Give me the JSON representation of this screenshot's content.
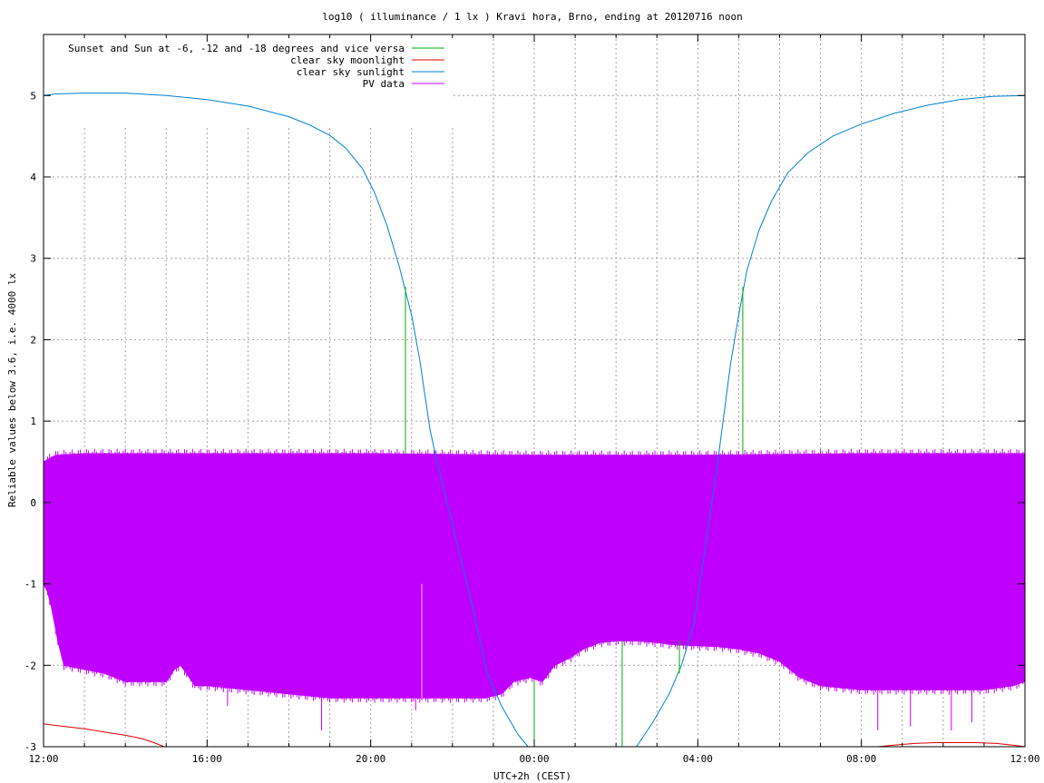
{
  "chart_data": {
    "type": "line",
    "title": "log10 ( illuminance / 1 lx ) Kravi hora, Brno, ending at 20120716 noon",
    "xlabel": "UTC+2h (CEST)",
    "ylabel": "Reliable values below 3.6, i.e. 4000 lx",
    "x_unit": "hours since 12:00",
    "xlim": [
      0,
      24
    ],
    "ylim": [
      -3,
      5.75
    ],
    "xticks": [
      {
        "value": 0,
        "label": "12:00"
      },
      {
        "value": 4,
        "label": "16:00"
      },
      {
        "value": 8,
        "label": "20:00"
      },
      {
        "value": 12,
        "label": "00:00"
      },
      {
        "value": 16,
        "label": "04:00"
      },
      {
        "value": 20,
        "label": "08:00"
      },
      {
        "value": 24,
        "label": "12:00"
      }
    ],
    "yticks": [
      {
        "value": -3,
        "label": "-3"
      },
      {
        "value": -2,
        "label": "-2"
      },
      {
        "value": -1,
        "label": "-1"
      },
      {
        "value": 0,
        "label": "0"
      },
      {
        "value": 1,
        "label": "1"
      },
      {
        "value": 2,
        "label": "2"
      },
      {
        "value": 3,
        "label": "3"
      },
      {
        "value": 4,
        "label": "4"
      },
      {
        "value": 5,
        "label": "5"
      }
    ],
    "grid": true,
    "legend_position": "top-left",
    "series": [
      {
        "name": "Sunset and Sun at -6, -12 and -18 degrees and vice versa",
        "color": "#00b000",
        "kind": "impulses",
        "impulses": [
          {
            "x": 8.85,
            "y0": 0.6,
            "y1": 2.65
          },
          {
            "x": 12.0,
            "y0": -3.0,
            "y1": -2.2
          },
          {
            "x": 14.15,
            "y0": -3.0,
            "y1": -1.7
          },
          {
            "x": 15.55,
            "y0": -2.1,
            "y1": -1.7
          },
          {
            "x": 17.1,
            "y0": 0.6,
            "y1": 2.65
          }
        ]
      },
      {
        "name": "clear sky moonlight",
        "color": "#e00000",
        "kind": "segments",
        "segments": [
          [
            [
              0,
              -2.72
            ],
            [
              0.5,
              -2.75
            ],
            [
              1.0,
              -2.78
            ],
            [
              1.5,
              -2.82
            ],
            [
              2.0,
              -2.86
            ],
            [
              2.4,
              -2.9
            ],
            [
              2.7,
              -2.95
            ],
            [
              2.95,
              -3.0
            ]
          ],
          [
            [
              20.4,
              -3.0
            ],
            [
              20.8,
              -2.98
            ],
            [
              21.3,
              -2.96
            ],
            [
              21.8,
              -2.95
            ],
            [
              22.3,
              -2.95
            ],
            [
              22.8,
              -2.95
            ],
            [
              23.3,
              -2.96
            ],
            [
              23.7,
              -2.98
            ],
            [
              24,
              -3.0
            ]
          ]
        ]
      },
      {
        "name": "clear sky sunlight",
        "color": "#0080d0",
        "kind": "segments",
        "segments": [
          [
            [
              0,
              5.0
            ],
            [
              0.3,
              5.02
            ],
            [
              1.0,
              5.03
            ],
            [
              2.0,
              5.03
            ],
            [
              3.0,
              5.0
            ],
            [
              4.0,
              4.95
            ],
            [
              5.0,
              4.87
            ],
            [
              6.0,
              4.74
            ],
            [
              6.5,
              4.64
            ],
            [
              7.0,
              4.51
            ],
            [
              7.4,
              4.35
            ],
            [
              7.8,
              4.1
            ],
            [
              8.1,
              3.8
            ],
            [
              8.4,
              3.4
            ],
            [
              8.7,
              2.9
            ],
            [
              9.0,
              2.3
            ],
            [
              9.2,
              1.75
            ],
            [
              9.45,
              0.9
            ],
            [
              9.6,
              0.55
            ],
            [
              10.5,
              -1.3
            ],
            [
              10.85,
              -2.1
            ],
            [
              11.2,
              -2.5
            ],
            [
              11.6,
              -2.85
            ],
            [
              11.85,
              -3.0
            ]
          ],
          [
            [
              14.5,
              -3.0
            ],
            [
              14.9,
              -2.7
            ],
            [
              15.3,
              -2.35
            ],
            [
              15.6,
              -2.0
            ],
            [
              15.9,
              -1.5
            ],
            [
              16.2,
              -0.5
            ],
            [
              16.5,
              0.55
            ],
            [
              16.8,
              1.7
            ],
            [
              17.0,
              2.3
            ],
            [
              17.2,
              2.85
            ],
            [
              17.5,
              3.35
            ],
            [
              17.8,
              3.7
            ],
            [
              18.2,
              4.05
            ],
            [
              18.7,
              4.3
            ],
            [
              19.3,
              4.5
            ],
            [
              20.0,
              4.65
            ],
            [
              20.8,
              4.78
            ],
            [
              21.6,
              4.88
            ],
            [
              22.4,
              4.95
            ],
            [
              23.2,
              4.99
            ],
            [
              24,
              5.0
            ]
          ]
        ]
      },
      {
        "name": "PV data",
        "color": "#c000ff",
        "kind": "band",
        "upper": [
          [
            0,
            0.5
          ],
          [
            0.3,
            0.58
          ],
          [
            1,
            0.6
          ],
          [
            4,
            0.6
          ],
          [
            8,
            0.6
          ],
          [
            12,
            0.58
          ],
          [
            16,
            0.58
          ],
          [
            20,
            0.6
          ],
          [
            24,
            0.6
          ]
        ],
        "lower": [
          [
            0,
            -1.0
          ],
          [
            0.1,
            -1.1
          ],
          [
            0.2,
            -1.3
          ],
          [
            0.35,
            -1.7
          ],
          [
            0.5,
            -2.0
          ],
          [
            1.0,
            -2.05
          ],
          [
            1.5,
            -2.1
          ],
          [
            2.0,
            -2.2
          ],
          [
            2.5,
            -2.2
          ],
          [
            3.0,
            -2.2
          ],
          [
            3.2,
            -2.05
          ],
          [
            3.35,
            -2.0
          ],
          [
            3.5,
            -2.1
          ],
          [
            3.7,
            -2.25
          ],
          [
            4.0,
            -2.25
          ],
          [
            5.0,
            -2.3
          ],
          [
            6.0,
            -2.35
          ],
          [
            7.0,
            -2.4
          ],
          [
            8.0,
            -2.4
          ],
          [
            9.0,
            -2.4
          ],
          [
            10.0,
            -2.4
          ],
          [
            10.8,
            -2.4
          ],
          [
            11.2,
            -2.35
          ],
          [
            11.5,
            -2.2
          ],
          [
            11.9,
            -2.15
          ],
          [
            12.2,
            -2.2
          ],
          [
            12.5,
            -2.0
          ],
          [
            12.9,
            -1.9
          ],
          [
            13.2,
            -1.8
          ],
          [
            13.6,
            -1.72
          ],
          [
            14.0,
            -1.7
          ],
          [
            14.5,
            -1.7
          ],
          [
            15.0,
            -1.72
          ],
          [
            15.5,
            -1.75
          ],
          [
            16.0,
            -1.76
          ],
          [
            16.5,
            -1.77
          ],
          [
            17.0,
            -1.8
          ],
          [
            17.5,
            -1.85
          ],
          [
            18.0,
            -1.95
          ],
          [
            18.5,
            -2.15
          ],
          [
            19.0,
            -2.25
          ],
          [
            20.0,
            -2.3
          ],
          [
            21.0,
            -2.3
          ],
          [
            22.0,
            -2.3
          ],
          [
            23.0,
            -2.3
          ],
          [
            23.7,
            -2.25
          ],
          [
            24.0,
            -2.2
          ]
        ],
        "spikes": [
          [
            9.25,
            -1.0
          ],
          [
            6.8,
            -2.8
          ],
          [
            20.4,
            -2.8
          ],
          [
            21.2,
            -2.75
          ],
          [
            22.2,
            -2.8
          ],
          [
            22.7,
            -2.7
          ],
          [
            9.1,
            -2.55
          ],
          [
            4.5,
            -2.5
          ]
        ]
      }
    ]
  }
}
